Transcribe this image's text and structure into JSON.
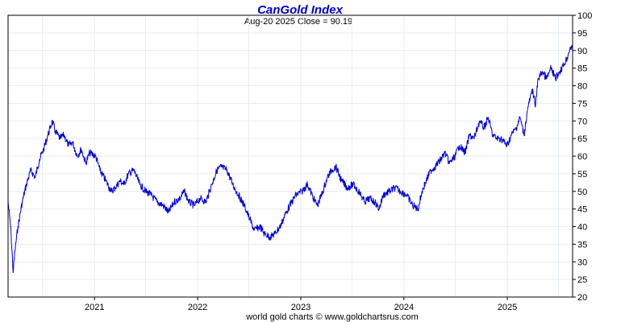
{
  "chart_data": {
    "type": "line",
    "title": "CanGold Index",
    "subtitle": "Aug-20  2025    Close = 90.19",
    "footer": "world gold charts © www.goldchartsrus.com",
    "ylim": [
      20,
      100
    ],
    "y_ticks": [
      20,
      25,
      30,
      35,
      40,
      45,
      50,
      55,
      60,
      65,
      70,
      75,
      80,
      85,
      90,
      95,
      100
    ],
    "x_range": [
      "2020-03-01",
      "2025-08-20"
    ],
    "x_ticks": [
      "2021",
      "2022",
      "2023",
      "2024",
      "2025"
    ],
    "grid": true,
    "colors": {
      "line": "#0000dd",
      "title": "#0000cc",
      "grid": "#e4ecf4",
      "frame": "#000000"
    },
    "series": [
      {
        "values": [
          [
            "2020-03-01",
            47
          ],
          [
            "2020-03-10",
            40
          ],
          [
            "2020-03-19",
            27
          ],
          [
            "2020-03-25",
            33
          ],
          [
            "2020-04-05",
            40
          ],
          [
            "2020-04-20",
            47
          ],
          [
            "2020-05-05",
            52
          ],
          [
            "2020-05-20",
            56
          ],
          [
            "2020-06-05",
            54
          ],
          [
            "2020-06-20",
            59
          ],
          [
            "2020-07-05",
            62
          ],
          [
            "2020-07-20",
            66
          ],
          [
            "2020-08-05",
            70
          ],
          [
            "2020-08-15",
            67
          ],
          [
            "2020-09-01",
            65
          ],
          [
            "2020-09-15",
            66
          ],
          [
            "2020-10-01",
            63
          ],
          [
            "2020-10-15",
            64
          ],
          [
            "2020-11-01",
            60
          ],
          [
            "2020-11-15",
            62
          ],
          [
            "2020-12-01",
            58
          ],
          [
            "2020-12-15",
            61
          ],
          [
            "2021-01-05",
            60
          ],
          [
            "2021-01-20",
            56
          ],
          [
            "2021-02-10",
            53
          ],
          [
            "2021-03-01",
            50
          ],
          [
            "2021-03-15",
            51
          ],
          [
            "2021-04-01",
            53
          ],
          [
            "2021-04-15",
            52
          ],
          [
            "2021-05-01",
            55
          ],
          [
            "2021-05-20",
            56
          ],
          [
            "2021-06-10",
            52
          ],
          [
            "2021-07-01",
            50
          ],
          [
            "2021-07-20",
            49
          ],
          [
            "2021-08-10",
            47
          ],
          [
            "2021-09-01",
            46
          ],
          [
            "2021-09-20",
            44
          ],
          [
            "2021-10-10",
            47
          ],
          [
            "2021-10-30",
            48
          ],
          [
            "2021-11-15",
            50
          ],
          [
            "2021-12-01",
            47
          ],
          [
            "2021-12-20",
            46
          ],
          [
            "2022-01-10",
            48
          ],
          [
            "2022-01-30",
            47
          ],
          [
            "2022-02-20",
            52
          ],
          [
            "2022-03-10",
            56
          ],
          [
            "2022-03-25",
            57
          ],
          [
            "2022-04-15",
            56
          ],
          [
            "2022-05-05",
            52
          ],
          [
            "2022-05-25",
            49
          ],
          [
            "2022-06-15",
            46
          ],
          [
            "2022-07-05",
            42
          ],
          [
            "2022-07-20",
            39
          ],
          [
            "2022-08-10",
            40
          ],
          [
            "2022-08-25",
            38
          ],
          [
            "2022-09-15",
            37
          ],
          [
            "2022-10-01",
            38
          ],
          [
            "2022-10-20",
            40
          ],
          [
            "2022-11-10",
            44
          ],
          [
            "2022-11-30",
            47
          ],
          [
            "2022-12-15",
            49
          ],
          [
            "2023-01-05",
            50
          ],
          [
            "2023-01-25",
            52
          ],
          [
            "2023-02-15",
            48
          ],
          [
            "2023-03-01",
            46
          ],
          [
            "2023-03-20",
            50
          ],
          [
            "2023-04-05",
            54
          ],
          [
            "2023-04-20",
            56
          ],
          [
            "2023-05-05",
            57
          ],
          [
            "2023-05-25",
            53
          ],
          [
            "2023-06-15",
            51
          ],
          [
            "2023-07-05",
            52
          ],
          [
            "2023-07-25",
            50
          ],
          [
            "2023-08-15",
            47
          ],
          [
            "2023-09-01",
            48
          ],
          [
            "2023-09-20",
            47
          ],
          [
            "2023-10-05",
            45
          ],
          [
            "2023-10-20",
            49
          ],
          [
            "2023-11-10",
            50
          ],
          [
            "2023-12-01",
            51
          ],
          [
            "2023-12-20",
            50
          ],
          [
            "2024-01-10",
            49
          ],
          [
            "2024-02-01",
            46
          ],
          [
            "2024-02-20",
            45
          ],
          [
            "2024-03-05",
            50
          ],
          [
            "2024-03-20",
            53
          ],
          [
            "2024-04-05",
            56
          ],
          [
            "2024-04-20",
            57
          ],
          [
            "2024-05-10",
            59
          ],
          [
            "2024-05-25",
            61
          ],
          [
            "2024-06-10",
            58
          ],
          [
            "2024-06-30",
            60
          ],
          [
            "2024-07-15",
            63
          ],
          [
            "2024-08-05",
            61
          ],
          [
            "2024-08-20",
            66
          ],
          [
            "2024-09-05",
            65
          ],
          [
            "2024-09-25",
            70
          ],
          [
            "2024-10-10",
            68
          ],
          [
            "2024-10-25",
            71
          ],
          [
            "2024-11-10",
            66
          ],
          [
            "2024-11-25",
            65
          ],
          [
            "2024-12-10",
            65
          ],
          [
            "2024-12-31",
            63
          ],
          [
            "2025-01-15",
            66
          ],
          [
            "2025-02-01",
            68
          ],
          [
            "2025-02-15",
            71
          ],
          [
            "2025-03-01",
            66
          ],
          [
            "2025-03-15",
            74
          ],
          [
            "2025-04-01",
            79
          ],
          [
            "2025-04-10",
            74
          ],
          [
            "2025-04-20",
            82
          ],
          [
            "2025-05-05",
            84
          ],
          [
            "2025-05-20",
            82
          ],
          [
            "2025-06-05",
            85
          ],
          [
            "2025-06-20",
            82
          ],
          [
            "2025-07-05",
            84
          ],
          [
            "2025-07-20",
            86
          ],
          [
            "2025-08-01",
            88
          ],
          [
            "2025-08-12",
            91
          ],
          [
            "2025-08-20",
            90.19
          ]
        ]
      }
    ]
  }
}
